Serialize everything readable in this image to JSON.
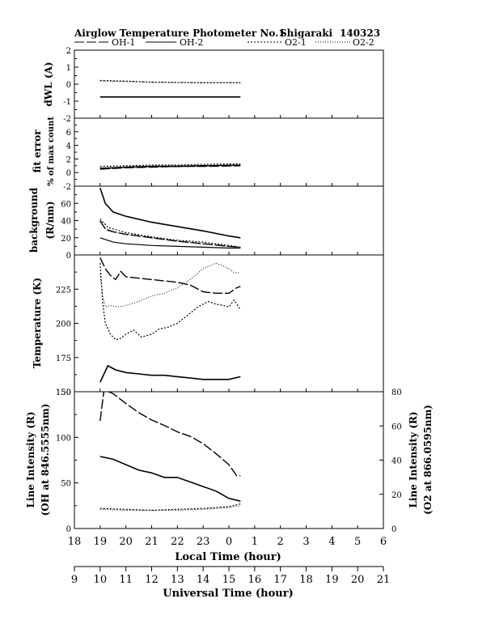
{
  "header": {
    "title": "Airglow Temperature Photometer No.1",
    "station": "Shigaraki",
    "date": "140323"
  },
  "legend": [
    {
      "name": "OH-1",
      "dash": "12,3"
    },
    {
      "name": "OH-2",
      "dash": ""
    },
    {
      "name": "O2-1",
      "dash": "2,2"
    },
    {
      "name": "O2-2",
      "dash": "1,2"
    }
  ],
  "chart_data": [
    {
      "id": "dwl",
      "type": "line",
      "ylabel": "dWL (A)",
      "ylim": [
        -2,
        2
      ],
      "yticks": [
        -2,
        -1,
        0,
        1,
        2
      ],
      "series": [
        {
          "name": "OH-2",
          "x": [
            19.0,
            24.45
          ],
          "y": [
            -0.75,
            -0.75
          ]
        },
        {
          "name": "O2-1",
          "x": [
            19.0,
            20.0,
            21.0,
            22.0,
            23.0,
            24.45
          ],
          "y": [
            0.22,
            0.18,
            0.12,
            0.1,
            0.08,
            0.08
          ]
        },
        {
          "name": "O2-2",
          "x": [
            19.0,
            20.0,
            21.0,
            22.0,
            23.0,
            24.45
          ],
          "y": [
            0.18,
            0.15,
            0.12,
            0.1,
            0.1,
            0.1
          ]
        }
      ]
    },
    {
      "id": "fit",
      "type": "line",
      "ylabel": "fit error",
      "ylabel2": "% of max count",
      "ylim": [
        -2,
        8
      ],
      "yticks": [
        -2,
        0,
        2,
        4,
        6
      ],
      "series": [
        {
          "name": "OH-1",
          "x": [
            19.0,
            20.0,
            21.0,
            22.0,
            23.0,
            24.45
          ],
          "y": [
            0.5,
            0.7,
            0.8,
            0.9,
            0.9,
            1.0
          ]
        },
        {
          "name": "OH-2",
          "x": [
            19.0,
            20.0,
            21.0,
            22.0,
            23.0,
            24.45
          ],
          "y": [
            0.6,
            0.8,
            0.9,
            0.9,
            1.0,
            1.1
          ]
        },
        {
          "name": "O2-1",
          "x": [
            19.0,
            20.0,
            21.0,
            22.0,
            23.0,
            24.45
          ],
          "y": [
            0.9,
            1.0,
            1.1,
            1.1,
            1.2,
            1.3
          ]
        },
        {
          "name": "O2-2",
          "x": [
            19.0,
            20.0,
            21.0,
            22.0,
            23.0,
            24.45
          ],
          "y": [
            0.7,
            0.8,
            0.9,
            1.0,
            1.0,
            1.1
          ]
        }
      ]
    },
    {
      "id": "bg",
      "type": "line",
      "ylabel": "background",
      "ylabel2": "(R/nm)",
      "ylim": [
        0,
        80
      ],
      "yticks": [
        0,
        20,
        40,
        60
      ],
      "series": [
        {
          "name": "OH-2",
          "x": [
            19.0,
            19.2,
            19.5,
            20.0,
            21.0,
            22.0,
            23.0,
            24.0,
            24.45
          ],
          "y": [
            78,
            60,
            50,
            45,
            38,
            33,
            28,
            22,
            20
          ]
        },
        {
          "name": "OH-1",
          "x": [
            19.0,
            19.2,
            19.5,
            20.0,
            21.0,
            22.0,
            23.0,
            24.0,
            24.45
          ],
          "y": [
            40,
            30,
            27,
            24,
            20,
            16,
            13,
            10,
            9
          ]
        },
        {
          "name": "O2-1",
          "x": [
            19.0,
            19.3,
            20.0,
            21.0,
            22.0,
            23.0,
            24.0,
            24.45
          ],
          "y": [
            42,
            32,
            26,
            21,
            17,
            15,
            11,
            9
          ]
        },
        {
          "name": "O2-2",
          "x": [
            19.0,
            19.3,
            20.0,
            21.0,
            22.0,
            23.0,
            24.0,
            24.45
          ],
          "y": [
            38,
            28,
            24,
            20,
            16,
            13,
            10,
            9
          ]
        },
        {
          "name": "OH-2b",
          "x": [
            19.0,
            19.5,
            20.0,
            21.0,
            22.0,
            23.0,
            24.0,
            24.45
          ],
          "y": [
            20,
            15,
            13,
            11,
            10,
            9,
            8,
            8
          ]
        }
      ]
    },
    {
      "id": "temp",
      "type": "line",
      "ylabel": "Temperature (K)",
      "ylim": [
        150,
        250
      ],
      "yticks": [
        150,
        175,
        200,
        225
      ],
      "series": [
        {
          "name": "OH-1",
          "x": [
            19.0,
            19.2,
            19.4,
            19.6,
            19.8,
            20.0,
            20.5,
            21.0,
            21.5,
            22.0,
            22.5,
            23.0,
            23.5,
            24.0,
            24.3,
            24.45
          ],
          "y": [
            248,
            240,
            235,
            232,
            238,
            234,
            233,
            232,
            231,
            230,
            228,
            223,
            222,
            222,
            226,
            227
          ]
        },
        {
          "name": "OH-2",
          "x": [
            19.0,
            19.3,
            19.6,
            20.0,
            20.5,
            21.0,
            21.5,
            22.0,
            22.5,
            23.0,
            23.5,
            24.0,
            24.45
          ],
          "y": [
            157,
            169,
            166,
            164,
            163,
            162,
            162,
            161,
            160,
            159,
            159,
            159,
            161
          ]
        },
        {
          "name": "O2-1",
          "x": [
            19.0,
            19.1,
            19.2,
            19.4,
            19.6,
            19.8,
            20.0,
            20.3,
            20.6,
            21.0,
            21.3,
            21.6,
            22.0,
            22.4,
            22.8,
            23.2,
            23.5,
            23.8,
            24.0,
            24.2,
            24.45
          ],
          "y": [
            244,
            215,
            200,
            192,
            188,
            189,
            192,
            195,
            190,
            192,
            196,
            197,
            200,
            206,
            212,
            216,
            214,
            213,
            212,
            217,
            210
          ]
        },
        {
          "name": "O2-2",
          "x": [
            19.0,
            19.1,
            19.2,
            19.4,
            19.7,
            20.0,
            20.5,
            21.0,
            21.5,
            22.0,
            22.5,
            23.0,
            23.5,
            24.0,
            24.2,
            24.45
          ],
          "y": [
            236,
            220,
            212,
            213,
            212,
            213,
            216,
            220,
            222,
            226,
            232,
            240,
            244,
            240,
            237,
            237
          ]
        }
      ]
    },
    {
      "id": "int",
      "type": "line",
      "ylabel": "Line Intensity (R)",
      "ylabel2": "(OH at 846.5555nm)",
      "ylabel_right": "Line Intensity (R)",
      "ylabel_right2": "(O2 at 866.0595nm)",
      "ylim": [
        0,
        150
      ],
      "yticks": [
        0,
        50,
        100,
        150
      ],
      "ylim_right": [
        0,
        80
      ],
      "yticks_right": [
        0,
        20,
        40,
        60,
        80
      ],
      "series": [
        {
          "name": "OH-1",
          "axis": "left",
          "x": [
            19.0,
            19.15,
            19.5,
            20.0,
            20.5,
            21.0,
            21.5,
            22.0,
            22.5,
            23.0,
            23.5,
            24.0,
            24.3,
            24.45
          ],
          "y": [
            118,
            152,
            148,
            137,
            127,
            119,
            113,
            106,
            101,
            93,
            82,
            70,
            58,
            58
          ]
        },
        {
          "name": "OH-2",
          "axis": "left",
          "x": [
            19.0,
            19.5,
            20.0,
            20.5,
            21.0,
            21.5,
            22.0,
            22.5,
            23.0,
            23.5,
            24.0,
            24.45
          ],
          "y": [
            79,
            76,
            70,
            64,
            61,
            56,
            56,
            51,
            46,
            41,
            33,
            30
          ]
        },
        {
          "name": "O2-1",
          "axis": "left",
          "x": [
            19.0,
            20.0,
            21.0,
            22.0,
            23.0,
            24.0,
            24.45
          ],
          "y": [
            22,
            21,
            20,
            21,
            22,
            24,
            27
          ]
        },
        {
          "name": "O2-2",
          "axis": "left",
          "x": [
            19.0,
            20.0,
            21.0,
            22.0,
            23.0,
            24.0,
            24.45
          ],
          "y": [
            21,
            20,
            20,
            20,
            21,
            23,
            25
          ]
        }
      ]
    }
  ],
  "x_axis": {
    "local_label": "Local Time (hour)",
    "local_min": 18,
    "local_max": 30,
    "local_ticks": [
      "18",
      "19",
      "20",
      "21",
      "22",
      "23",
      "0",
      "1",
      "2",
      "3",
      "4",
      "5",
      "6"
    ],
    "ut_label": "Universal Time (hour)",
    "ut_ticks": [
      "9",
      "10",
      "11",
      "12",
      "13",
      "14",
      "15",
      "16",
      "17",
      "18",
      "19",
      "20",
      "21"
    ]
  }
}
